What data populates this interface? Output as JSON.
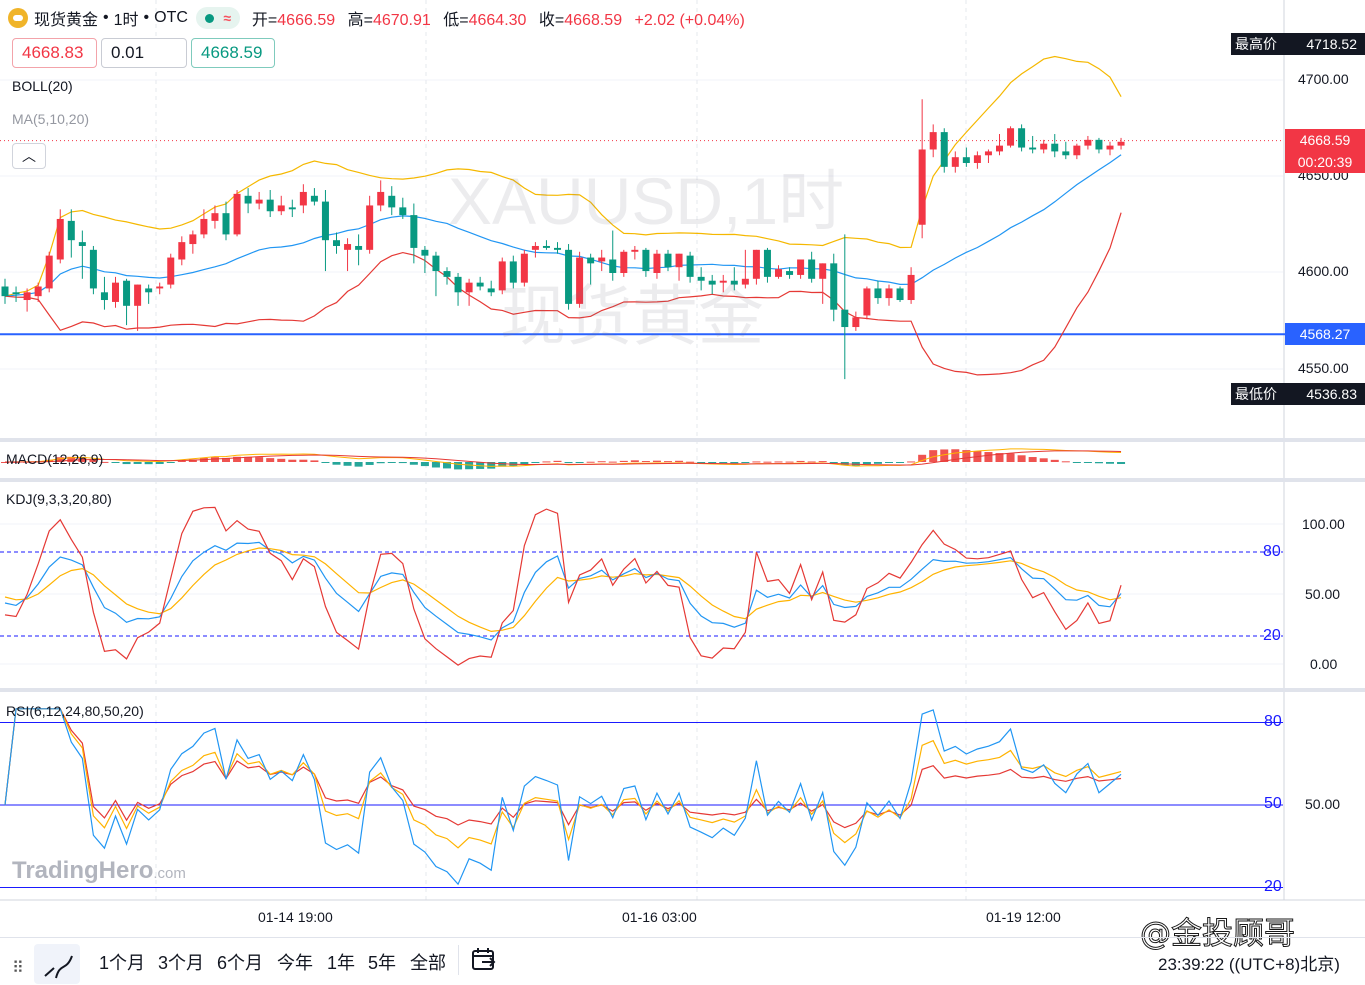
{
  "legend": {
    "symbol_name": "现货黄金",
    "separator": "•",
    "interval": "1时",
    "exchange": "OTC",
    "open_label": "开=",
    "open": "4666.59",
    "high_label": "高=",
    "high": "4670.91",
    "low_label": "低=",
    "low": "4664.30",
    "close_label": "收=",
    "close": "4668.59",
    "change": "+2.02 (+0.04%)"
  },
  "trade": {
    "sell_price": "4668.83",
    "quantity": "0.01",
    "buy_price": "4668.59"
  },
  "indicators": {
    "boll": "BOLL(20)",
    "ma": "MA(5,10,20)",
    "macd": "MACD(12,26,9)",
    "kdj": "KDJ(9,3,3,20,80)",
    "rsi": "RSI(6,12,24,80,50,20)"
  },
  "watermark": {
    "symbol": "XAUUSD,1时",
    "name": "现货黄金"
  },
  "price_axis": {
    "labels": [
      "4700.00",
      "4650.00",
      "4600.00",
      "4550.00"
    ],
    "highest_label": "最高价",
    "highest_value": "4718.52",
    "lowest_label": "最低价",
    "lowest_value": "4536.83",
    "last_price": "4668.59",
    "countdown": "00:20:39",
    "horizontal_line_value": "4568.27"
  },
  "kdj_axis": {
    "labels": [
      "100.00",
      "50.00",
      "0.00"
    ],
    "upper_band": "80",
    "lower_band": "20"
  },
  "rsi_axis": {
    "label": "50.00",
    "upper_band": "80",
    "mid_band": "50",
    "lower_band": "20"
  },
  "time_axis": [
    "01-14 19:00",
    "01-16 03:00",
    "01-19 12:00"
  ],
  "brand": {
    "name": "TradingHero",
    "suffix": ".com"
  },
  "range_buttons": [
    "1个月",
    "3个月",
    "6个月",
    "今年",
    "1年",
    "5年",
    "全部"
  ],
  "clock": "23:39:22 ((UTC+8)北京)",
  "credit": "@金投顾哥",
  "colors": {
    "up": "#f23645",
    "down": "#089981",
    "boll_upper": "#f5b800",
    "boll_mid": "#2196f3",
    "boll_lower": "#e53935",
    "hline": "#2962ff"
  },
  "chart_data": {
    "type": "candlestick",
    "price_range": [
      4536.83,
      4718.52
    ],
    "candles": [
      [
        4593,
        4597,
        4584,
        4588
      ],
      [
        4590,
        4593,
        4585,
        4589
      ],
      [
        4586,
        4592,
        4580,
        4590
      ],
      [
        4588,
        4595,
        4585,
        4593
      ],
      [
        4592,
        4611,
        4590,
        4609
      ],
      [
        4607,
        4633,
        4605,
        4628
      ],
      [
        4627,
        4633,
        4608,
        4617
      ],
      [
        4616,
        4622,
        4597,
        4614
      ],
      [
        4612,
        4614,
        4589,
        4592
      ],
      [
        4590,
        4598,
        4581,
        4586
      ],
      [
        4585,
        4598,
        4582,
        4595
      ],
      [
        4596,
        4597,
        4573,
        4583
      ],
      [
        4583,
        4594,
        4570,
        4594
      ],
      [
        4592,
        4594,
        4584,
        4590
      ],
      [
        4592,
        4595,
        4589,
        4593
      ],
      [
        4594,
        4610,
        4592,
        4608
      ],
      [
        4607,
        4619,
        4604,
        4616
      ],
      [
        4615,
        4622,
        4610,
        4620
      ],
      [
        4620,
        4633,
        4618,
        4628
      ],
      [
        4627,
        4635,
        4623,
        4631
      ],
      [
        4631,
        4637,
        4617,
        4620
      ],
      [
        4620,
        4643,
        4619,
        4641
      ],
      [
        4640,
        4644,
        4631,
        4636
      ],
      [
        4636,
        4642,
        4633,
        4638
      ],
      [
        4638,
        4643,
        4629,
        4632
      ],
      [
        4632,
        4640,
        4630,
        4635
      ],
      [
        4634,
        4638,
        4629,
        4633
      ],
      [
        4635,
        4646,
        4631,
        4642
      ],
      [
        4640,
        4644,
        4635,
        4637
      ],
      [
        4637,
        4643,
        4601,
        4617
      ],
      [
        4617,
        4621,
        4610,
        4614
      ],
      [
        4612,
        4618,
        4601,
        4615
      ],
      [
        4614,
        4620,
        4604,
        4612
      ],
      [
        4612,
        4640,
        4610,
        4635
      ],
      [
        4635,
        4648,
        4632,
        4642
      ],
      [
        4640,
        4645,
        4630,
        4634
      ],
      [
        4634,
        4639,
        4628,
        4630
      ],
      [
        4630,
        4636,
        4605,
        4613
      ],
      [
        4612,
        4614,
        4600,
        4609
      ],
      [
        4609,
        4611,
        4588,
        4601
      ],
      [
        4601,
        4603,
        4594,
        4598
      ],
      [
        4598,
        4600,
        4583,
        4590
      ],
      [
        4590,
        4597,
        4583,
        4595
      ],
      [
        4595,
        4598,
        4591,
        4593
      ],
      [
        4592,
        4596,
        4588,
        4590
      ],
      [
        4591,
        4608,
        4589,
        4606
      ],
      [
        4606,
        4609,
        4592,
        4595
      ],
      [
        4595,
        4612,
        4593,
        4610
      ],
      [
        4612,
        4616,
        4608,
        4614
      ],
      [
        4614,
        4617,
        4612,
        4613
      ],
      [
        4613,
        4616,
        4610,
        4612
      ],
      [
        4612,
        4615,
        4581,
        4584
      ],
      [
        4584,
        4611,
        4582,
        4608
      ],
      [
        4608,
        4610,
        4594,
        4605
      ],
      [
        4606,
        4612,
        4601,
        4608
      ],
      [
        4607,
        4622,
        4596,
        4600
      ],
      [
        4600,
        4612,
        4598,
        4611
      ],
      [
        4611,
        4614,
        4607,
        4612
      ],
      [
        4612,
        4613,
        4598,
        4601
      ],
      [
        4600,
        4612,
        4597,
        4610
      ],
      [
        4610,
        4612,
        4601,
        4603
      ],
      [
        4603,
        4610,
        4596,
        4610
      ],
      [
        4609,
        4611,
        4595,
        4598
      ],
      [
        4598,
        4603,
        4591,
        4596
      ],
      [
        4596,
        4599,
        4589,
        4594
      ],
      [
        4595,
        4599,
        4590,
        4596
      ],
      [
        4596,
        4603,
        4591,
        4594
      ],
      [
        4594,
        4612,
        4592,
        4597
      ],
      [
        4597,
        4612,
        4594,
        4612
      ],
      [
        4612,
        4613,
        4595,
        4598
      ],
      [
        4598,
        4604,
        4597,
        4602
      ],
      [
        4601,
        4603,
        4597,
        4599
      ],
      [
        4599,
        4607,
        4597,
        4607
      ],
      [
        4607,
        4611,
        4595,
        4597
      ],
      [
        4597,
        4605,
        4584,
        4605
      ],
      [
        4605,
        4610,
        4575,
        4581
      ],
      [
        4581,
        4620,
        4545,
        4572
      ],
      [
        4572,
        4580,
        4570,
        4577
      ],
      [
        4578,
        4593,
        4576,
        4592
      ],
      [
        4592,
        4596,
        4584,
        4587
      ],
      [
        4587,
        4594,
        4583,
        4592
      ],
      [
        4592,
        4593,
        4585,
        4586
      ],
      [
        4586,
        4603,
        4584,
        4599
      ],
      [
        4625,
        4690,
        4618,
        4664
      ],
      [
        4664,
        4677,
        4660,
        4673
      ],
      [
        4673,
        4675,
        4652,
        4655
      ],
      [
        4655,
        4663,
        4652,
        4660
      ],
      [
        4660,
        4665,
        4655,
        4657
      ],
      [
        4657,
        4663,
        4654,
        4661
      ],
      [
        4661,
        4664,
        4657,
        4663
      ],
      [
        4663,
        4672,
        4661,
        4666
      ],
      [
        4666,
        4676,
        4665,
        4675
      ],
      [
        4675,
        4677,
        4663,
        4665
      ],
      [
        4665,
        4671,
        4662,
        4664
      ],
      [
        4664,
        4669,
        4662,
        4667
      ],
      [
        4667,
        4672,
        4660,
        4663
      ],
      [
        4663,
        4668,
        4659,
        4661
      ],
      [
        4661,
        4667,
        4659,
        4666
      ],
      [
        4666,
        4671,
        4664,
        4669
      ],
      [
        4669,
        4670,
        4662,
        4664
      ],
      [
        4664,
        4668,
        4661,
        4666
      ],
      [
        4666,
        4670,
        4664,
        4668
      ]
    ]
  }
}
